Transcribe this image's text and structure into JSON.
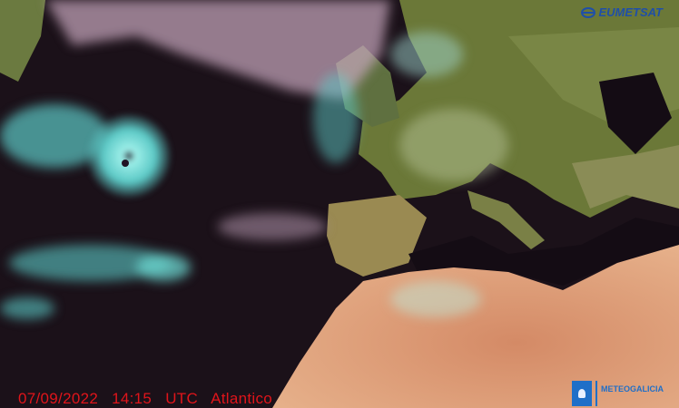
{
  "image": {
    "caption": {
      "date": "07/09/2022",
      "time": "14:15",
      "timezone": "UTC",
      "region": "Atlantico"
    },
    "caption_color": "#e0141a",
    "logos": {
      "top_right": "EUMETSAT",
      "bottom_right": "METEOGALICIA"
    },
    "colors": {
      "ocean": "#1b1119",
      "land_europe": "#6f7a3a",
      "land_africa": "#d99a72",
      "cloud_ice": "#6fe0d8",
      "cloud_low": "#d9b8cc"
    }
  }
}
